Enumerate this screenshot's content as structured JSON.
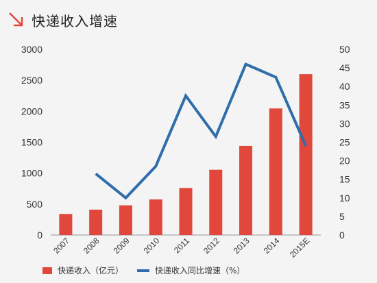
{
  "header": {
    "title": "快递收入增速",
    "icon": "arrow-down-right-icon"
  },
  "colors": {
    "bar": "#e1473a",
    "line": "#2f6dab",
    "accent": "#e1473a",
    "axis": "#999999"
  },
  "legend": {
    "bar_label": "快递收入（亿元）",
    "line_label": "快递收入同比增速（%）"
  },
  "chart_data": {
    "type": "bar",
    "categories": [
      "2007",
      "2008",
      "2009",
      "2010",
      "2011",
      "2012",
      "2013",
      "2014",
      "2015E"
    ],
    "series": [
      {
        "name": "快递收入（亿元）",
        "type": "bar",
        "axis": "left",
        "values": [
          340,
          410,
          480,
          575,
          760,
          1055,
          1440,
          2045,
          2600
        ]
      },
      {
        "name": "快递收入同比增速（%）",
        "type": "line",
        "axis": "right",
        "values": [
          null,
          16.5,
          10,
          18.5,
          37.5,
          26.5,
          46,
          42.5,
          24
        ]
      }
    ],
    "y_left": {
      "ylim": [
        0,
        3000
      ],
      "ticks": [
        0,
        500,
        1000,
        1500,
        2000,
        2500,
        3000
      ]
    },
    "y_right": {
      "ylim": [
        0,
        50
      ],
      "ticks": [
        0,
        5,
        10,
        15,
        20,
        25,
        30,
        35,
        40,
        45,
        50
      ]
    },
    "legend_position": "bottom-left",
    "grid": false
  }
}
